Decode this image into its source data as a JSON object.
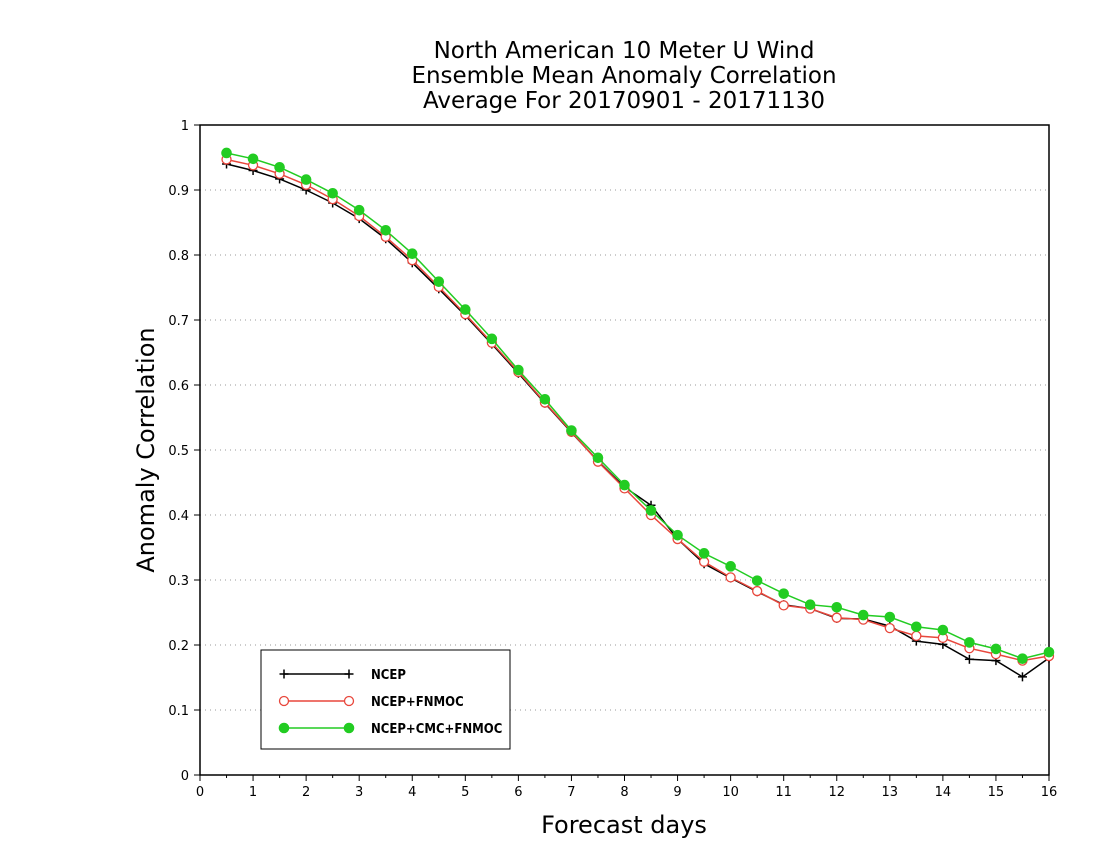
{
  "chart_data": {
    "type": "line",
    "title": [
      "North American 10 Meter U Wind",
      "Ensemble Mean Anomaly Correlation",
      "Average For 20170901 - 20171130"
    ],
    "xlabel": "Forecast days",
    "ylabel": "Anomaly Correlation",
    "xlim": [
      0,
      16
    ],
    "ylim": [
      0,
      1
    ],
    "x_ticks": [
      "0",
      "1",
      "2",
      "3",
      "4",
      "5",
      "6",
      "7",
      "8",
      "9",
      "10",
      "11",
      "12",
      "13",
      "14",
      "15",
      "16"
    ],
    "y_ticks": [
      "0",
      "0.1",
      "0.2",
      "0.3",
      "0.4",
      "0.5",
      "0.6",
      "0.7",
      "0.8",
      "0.9",
      "1"
    ],
    "grid": true,
    "legend_position": "bottom-left",
    "x": [
      0.5,
      1,
      1.5,
      2,
      2.5,
      3,
      3.5,
      4,
      4.5,
      5,
      5.5,
      6,
      6.5,
      7,
      7.5,
      8,
      8.5,
      9,
      9.5,
      10,
      10.5,
      11,
      11.5,
      12,
      12.5,
      13,
      13.5,
      14,
      14.5,
      15,
      15.5,
      16
    ],
    "series": [
      {
        "name": "NCEP",
        "color": "#000000",
        "marker": "plus",
        "values": [
          0.94,
          0.93,
          0.917,
          0.9,
          0.88,
          0.856,
          0.825,
          0.788,
          0.748,
          0.707,
          0.663,
          0.618,
          0.572,
          0.527,
          0.483,
          0.443,
          0.415,
          0.363,
          0.325,
          0.303,
          0.282,
          0.262,
          0.256,
          0.241,
          0.24,
          0.229,
          0.206,
          0.201,
          0.178,
          0.176,
          0.151,
          0.18
        ]
      },
      {
        "name": "NCEP+FNMOC",
        "color": "#e8473c",
        "marker": "open-circle",
        "values": [
          0.947,
          0.938,
          0.925,
          0.908,
          0.886,
          0.86,
          0.828,
          0.792,
          0.751,
          0.709,
          0.665,
          0.62,
          0.573,
          0.528,
          0.482,
          0.441,
          0.4,
          0.363,
          0.328,
          0.304,
          0.283,
          0.261,
          0.256,
          0.242,
          0.239,
          0.226,
          0.214,
          0.211,
          0.195,
          0.186,
          0.176,
          0.183
        ]
      },
      {
        "name": "NCEP+CMC+FNMOC",
        "color": "#22cc22",
        "marker": "filled-circle",
        "values": [
          0.957,
          0.948,
          0.935,
          0.916,
          0.895,
          0.869,
          0.838,
          0.802,
          0.759,
          0.716,
          0.671,
          0.623,
          0.578,
          0.53,
          0.488,
          0.446,
          0.407,
          0.369,
          0.341,
          0.321,
          0.299,
          0.279,
          0.262,
          0.258,
          0.246,
          0.243,
          0.228,
          0.223,
          0.204,
          0.194,
          0.179,
          0.189
        ]
      }
    ]
  }
}
